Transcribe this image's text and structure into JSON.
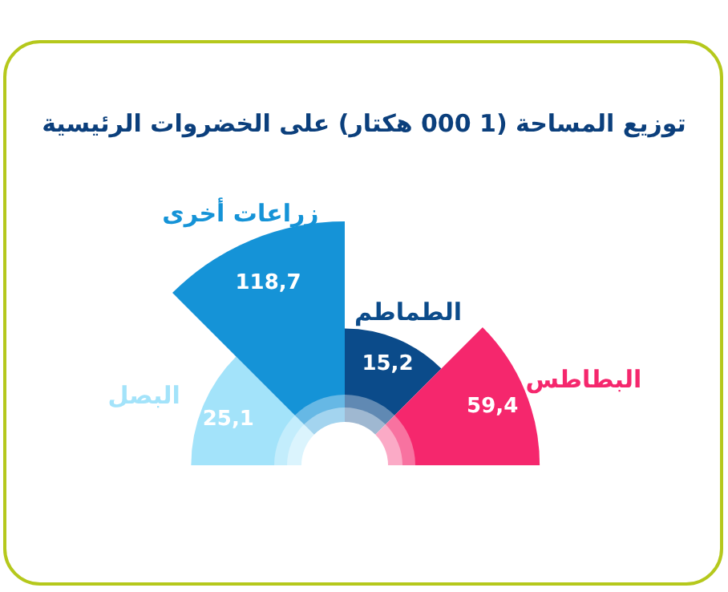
{
  "chart_data": {
    "type": "other",
    "title": "توزيع المساحة (1 000 هكتار) على الخضروات الرئيسية",
    "categories": [
      "البصل",
      "زراعات أخرى",
      "الطماطم",
      "البطاطس"
    ],
    "values": [
      25.1,
      118.7,
      15.2,
      59.4
    ],
    "value_labels": [
      "25,1",
      "118,7",
      "15,2",
      "59,4"
    ],
    "colors": [
      "#a3e3fa",
      "#1593d7",
      "#0b4b8a",
      "#f5276d"
    ]
  }
}
